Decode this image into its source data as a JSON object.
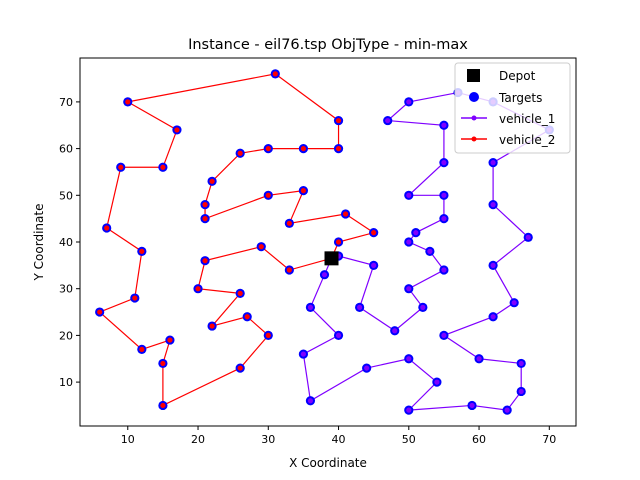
{
  "chart_data": {
    "type": "scatter",
    "title": "Instance - eil76.tsp   ObjType - min-max",
    "xlabel": "X Coordinate",
    "ylabel": "Y Coordinate",
    "xlim": [
      3.2,
      73.8
    ],
    "ylim": [
      0.6,
      79.4
    ],
    "xticks": [
      10,
      20,
      30,
      40,
      50,
      60,
      70
    ],
    "yticks": [
      10,
      20,
      30,
      40,
      50,
      60,
      70
    ],
    "grid": false,
    "legend_position": "top-right",
    "depot": {
      "name": "Depot",
      "x": 39,
      "y": 36.5,
      "color": "#000000"
    },
    "targets_label": "Targets",
    "targets_color": "#0000ff",
    "series": [
      {
        "name": "vehicle_1",
        "color": "#7f00ff",
        "points": [
          [
            39,
            36.5
          ],
          [
            40,
            37
          ],
          [
            45,
            35
          ],
          [
            43,
            26
          ],
          [
            48,
            21
          ],
          [
            52,
            26
          ],
          [
            50,
            30
          ],
          [
            55,
            34
          ],
          [
            53,
            38
          ],
          [
            50,
            40
          ],
          [
            51,
            42
          ],
          [
            55,
            45
          ],
          [
            55,
            50
          ],
          [
            50,
            50
          ],
          [
            55,
            57
          ],
          [
            55,
            65
          ],
          [
            47,
            66
          ],
          [
            50,
            70
          ],
          [
            57,
            72
          ],
          [
            62,
            70
          ],
          [
            70,
            64
          ],
          [
            62,
            57
          ],
          [
            62,
            48
          ],
          [
            67,
            41
          ],
          [
            62,
            35
          ],
          [
            65,
            27
          ],
          [
            62,
            24
          ],
          [
            55,
            20
          ],
          [
            60,
            15
          ],
          [
            66,
            14
          ],
          [
            66,
            8
          ],
          [
            64,
            4
          ],
          [
            59,
            5
          ],
          [
            50,
            4
          ],
          [
            54,
            10
          ],
          [
            50,
            15
          ],
          [
            44,
            13
          ],
          [
            36,
            6
          ],
          [
            35,
            16
          ],
          [
            40,
            20
          ],
          [
            36,
            26
          ],
          [
            38,
            33
          ],
          [
            39,
            36.5
          ]
        ]
      },
      {
        "name": "vehicle_2",
        "color": "#ff0000",
        "points": [
          [
            39,
            36.5
          ],
          [
            33,
            34
          ],
          [
            29,
            39
          ],
          [
            21,
            36
          ],
          [
            20,
            30
          ],
          [
            26,
            29
          ],
          [
            22,
            22
          ],
          [
            27,
            24
          ],
          [
            30,
            20
          ],
          [
            26,
            13
          ],
          [
            15,
            5
          ],
          [
            15,
            14
          ],
          [
            16,
            19
          ],
          [
            12,
            17
          ],
          [
            6,
            25
          ],
          [
            11,
            28
          ],
          [
            12,
            38
          ],
          [
            7,
            43
          ],
          [
            9,
            56
          ],
          [
            15,
            56
          ],
          [
            17,
            64
          ],
          [
            10,
            70
          ],
          [
            31,
            76
          ],
          [
            40,
            66
          ],
          [
            40,
            60
          ],
          [
            35,
            60
          ],
          [
            30,
            60
          ],
          [
            26,
            59
          ],
          [
            22,
            53
          ],
          [
            21,
            48
          ],
          [
            21,
            45
          ],
          [
            30,
            50
          ],
          [
            35,
            51
          ],
          [
            33,
            44
          ],
          [
            41,
            46
          ],
          [
            45,
            42
          ],
          [
            40,
            40
          ],
          [
            39,
            36.5
          ]
        ]
      }
    ]
  }
}
